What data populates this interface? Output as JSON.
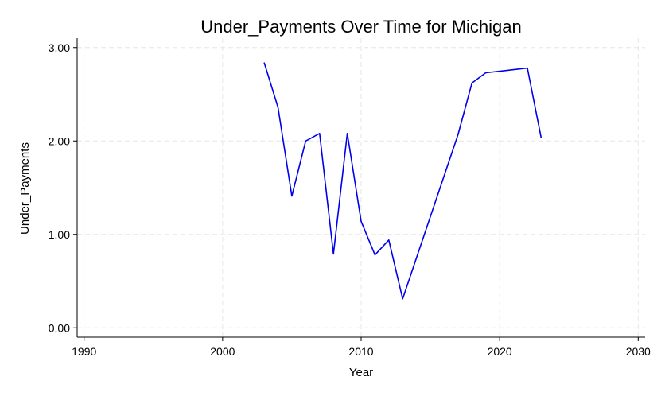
{
  "chart_data": {
    "type": "line",
    "title": "Under_Payments Over Time for Michigan",
    "xlabel": "Year",
    "ylabel": "Under_Payments",
    "xlim": [
      1989.5,
      2030.5
    ],
    "ylim": [
      -0.1,
      3.1
    ],
    "xticks": [
      1990,
      2000,
      2010,
      2020,
      2030
    ],
    "xtick_labels": [
      "1990",
      "2000",
      "2010",
      "2020",
      "2030"
    ],
    "yticks": [
      0,
      1,
      2,
      3
    ],
    "ytick_labels": [
      "0.00",
      "1.00",
      "2.00",
      "3.00"
    ],
    "grid": true,
    "legend": "none",
    "series": [
      {
        "color": "#0000ee",
        "x": [
          2003,
          2004,
          2005,
          2006,
          2007,
          2008,
          2009,
          2010,
          2011,
          2012,
          2013,
          2017,
          2018,
          2019,
          2022,
          2023
        ],
        "y": [
          2.84,
          2.36,
          1.41,
          2.0,
          2.08,
          0.79,
          2.08,
          1.14,
          0.78,
          0.94,
          0.31,
          2.07,
          2.62,
          2.73,
          2.78,
          2.03
        ]
      }
    ]
  }
}
